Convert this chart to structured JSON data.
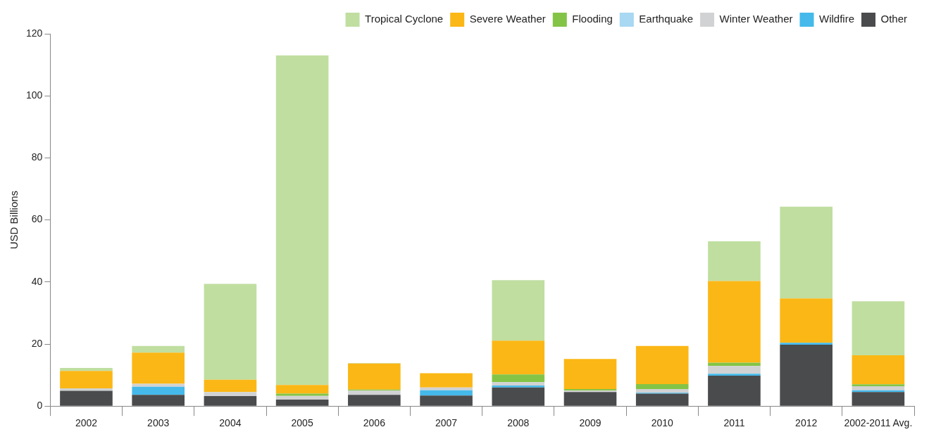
{
  "chart_data": {
    "type": "bar",
    "ylabel": "USD Billions",
    "stacked": true,
    "grid": false,
    "legend": "top right",
    "categories": [
      "2002",
      "2003",
      "2004",
      "2005",
      "2006",
      "2007",
      "2008",
      "2009",
      "2010",
      "2011",
      "2012",
      "2002-2011 Avg."
    ],
    "ylim": [
      0,
      120
    ],
    "yticks": [
      0,
      20,
      40,
      60,
      80,
      100,
      120
    ],
    "series": [
      {
        "name": "Other",
        "color": "#4a4b4d",
        "values": [
          4.9,
          3.6,
          3.2,
          2.1,
          3.6,
          3.4,
          6.0,
          4.5,
          4.0,
          9.8,
          19.8,
          4.5
        ]
      },
      {
        "name": "Wildfire",
        "color": "#45b9ea",
        "values": [
          0,
          2.6,
          0,
          0,
          0,
          1.7,
          0.6,
          0,
          0.3,
          0.6,
          0.6,
          0.6
        ]
      },
      {
        "name": "Winter Weather",
        "color": "#d1d2d3",
        "values": [
          0.8,
          1.0,
          1.3,
          1.2,
          1.4,
          0.9,
          1.1,
          0.5,
          1.2,
          2.5,
          0,
          1.3
        ]
      },
      {
        "name": "Earthquake",
        "color": "#a8d8f2",
        "values": [
          0,
          0,
          0,
          0,
          0,
          0,
          0,
          0,
          0,
          null,
          0,
          0
        ]
      },
      {
        "name": "Flooding",
        "color": "#83c447",
        "values": [
          0,
          null,
          0,
          0.7,
          0.3,
          0,
          2.5,
          0.5,
          1.6,
          1.1,
          0,
          0.6
        ]
      },
      {
        "name": "Severe Weather",
        "color": "#fbb715",
        "values": [
          5.6,
          10.0,
          4.0,
          2.8,
          8.4,
          4.6,
          10.9,
          9.7,
          12.3,
          26.3,
          14.3,
          9.4
        ]
      },
      {
        "name": "Tropical Cyclone",
        "color": "#c0dea0",
        "values": [
          1.0,
          2.2,
          30.9,
          106.2,
          0.2,
          0,
          19.5,
          null,
          0,
          12.8,
          29.6,
          17.4
        ]
      }
    ]
  }
}
